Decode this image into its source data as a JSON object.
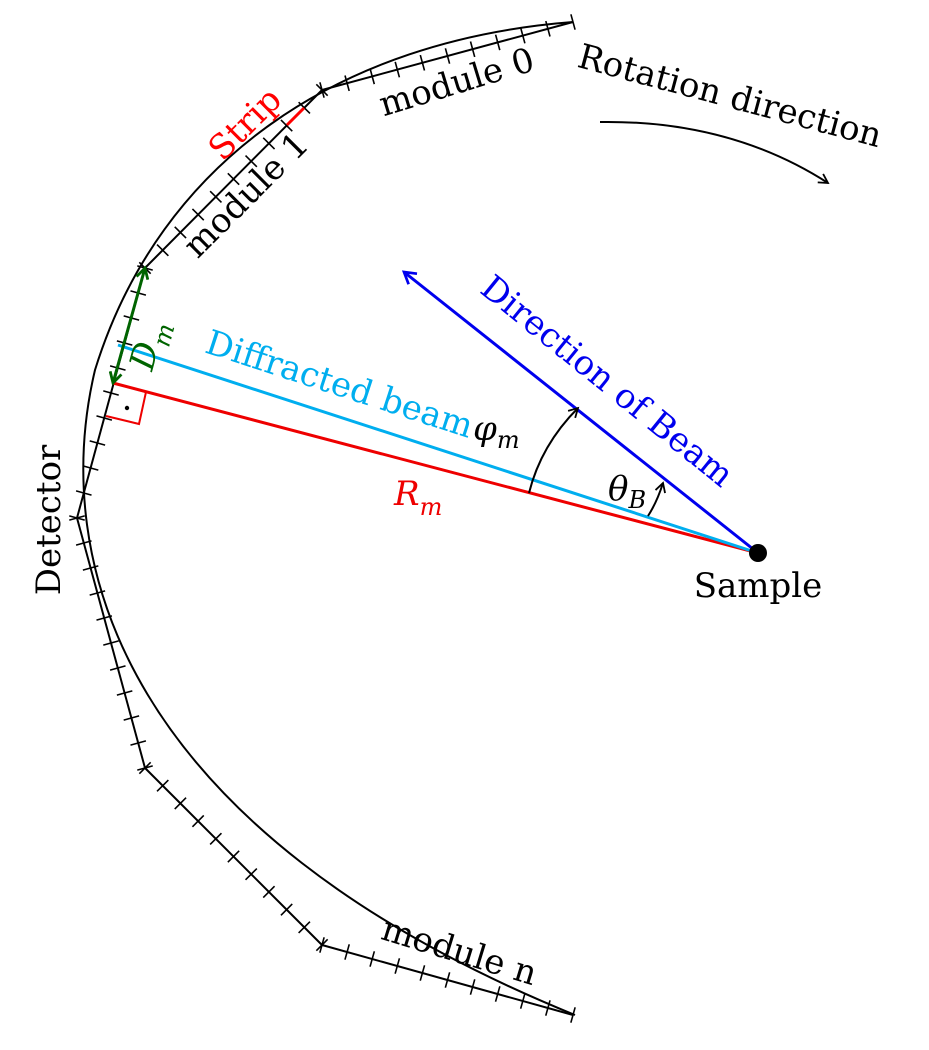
{
  "labels": {
    "strip": "Strip",
    "module0": "module 0",
    "module1": "module 1",
    "module_n": "module n",
    "rotation": "Rotation direction",
    "beam_direction": "Direction of Beam",
    "diffracted_beam": "Diffracted beam",
    "phi": "φ",
    "phi_sub": "m",
    "theta": "θ",
    "theta_sub": "B",
    "r": "R",
    "r_sub": "m",
    "d": "D",
    "d_sub": "m",
    "detector": "Detector",
    "sample": "Sample"
  },
  "colors": {
    "ink": "#000000",
    "strip": "#ff0000",
    "beam": "#0000ee",
    "diffracted": "#00aeef",
    "radius": "#ee0000",
    "d_m": "#006400"
  },
  "detector": {
    "visible_modules": [
      "module 0",
      "module 1",
      "module n"
    ]
  }
}
